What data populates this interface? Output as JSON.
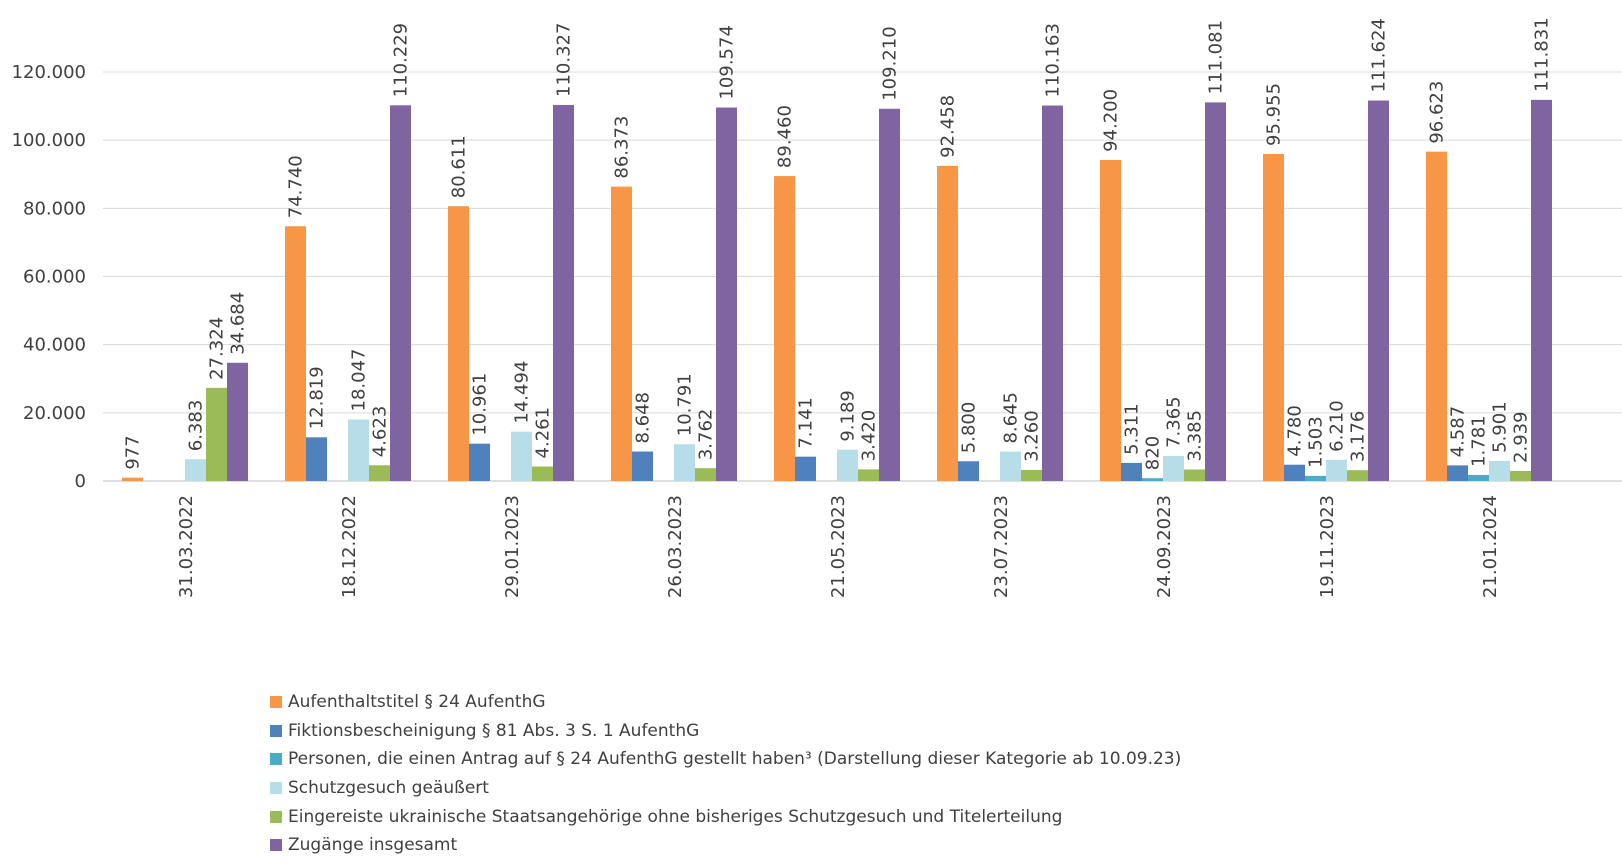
{
  "chart_data": {
    "type": "bar",
    "title": "",
    "xlabel": "",
    "ylabel": "",
    "ylim": [
      0,
      120000
    ],
    "yticks": [
      0,
      20000,
      40000,
      60000,
      80000,
      100000,
      120000
    ],
    "ytick_labels": [
      "0",
      "20.000",
      "40.000",
      "60.000",
      "80.000",
      "100.000",
      "120.000"
    ],
    "grid": true,
    "legend_position": "bottom",
    "categories": [
      "31.03.2022",
      "18.12.2022",
      "29.01.2023",
      "26.03.2023",
      "21.05.2023",
      "23.07.2023",
      "24.09.2023",
      "19.11.2023",
      "21.01.2024"
    ],
    "series": [
      {
        "name": "Aufenthaltstitel § 24 AufenthG",
        "color": "#F79646",
        "values": [
          977,
          74740,
          80611,
          86373,
          89460,
          92458,
          94200,
          95955,
          96623
        ],
        "labels": [
          "977",
          "74.740",
          "80.611",
          "86.373",
          "89.460",
          "92.458",
          "94.200",
          "95.955",
          "96.623"
        ]
      },
      {
        "name": "Fiktionsbescheinigung § 81 Abs. 3 S. 1 AufenthG",
        "color": "#4F81BD",
        "values": [
          null,
          12819,
          10961,
          8648,
          7141,
          5800,
          5311,
          4780,
          4587
        ],
        "labels": [
          "",
          "12.819",
          "10.961",
          "8.648",
          "7.141",
          "5.800",
          "5.311",
          "4.780",
          "4.587"
        ]
      },
      {
        "name": "Personen, die einen Antrag auf § 24 AufenthG gestellt haben³ (Darstellung dieser Kategorie ab 10.09.23)",
        "color": "#4BACC6",
        "values": [
          null,
          null,
          null,
          null,
          null,
          null,
          820,
          1503,
          1781
        ],
        "labels": [
          "",
          "",
          "",
          "",
          "",
          "",
          "820",
          "1.503",
          "1.781"
        ]
      },
      {
        "name": "Schutzgesuch geäußert",
        "color": "#B7DEE8",
        "values": [
          6383,
          18047,
          14494,
          10791,
          9189,
          8645,
          7365,
          6210,
          5901
        ],
        "labels": [
          "6.383",
          "18.047",
          "14.494",
          "10.791",
          "9.189",
          "8.645",
          "7.365",
          "6.210",
          "5.901"
        ]
      },
      {
        "name": "Eingereiste ukrainische Staatsangehörige ohne bisheriges Schutzgesuch und Titelerteilung",
        "color": "#9BBB59",
        "values": [
          27324,
          4623,
          4261,
          3762,
          3420,
          3260,
          3385,
          3176,
          2939
        ],
        "labels": [
          "27.324",
          "4.623",
          "4.261",
          "3.762",
          "3.420",
          "3.260",
          "3.385",
          "3.176",
          "2.939"
        ]
      },
      {
        "name": "Zugänge insgesamt",
        "color": "#8064A2",
        "values": [
          34684,
          110229,
          110327,
          109574,
          109210,
          110163,
          111081,
          111624,
          111831
        ],
        "labels": [
          "34.684",
          "110.229",
          "110.327",
          "109.574",
          "109.210",
          "110.163",
          "111.081",
          "111.624",
          "111.831"
        ]
      }
    ]
  }
}
